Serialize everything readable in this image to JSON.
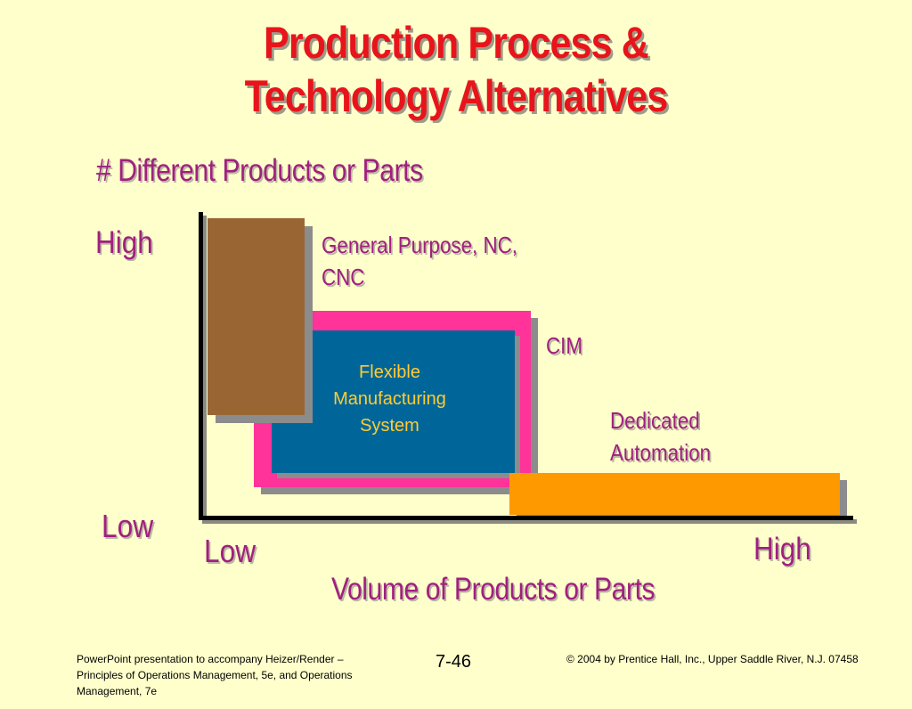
{
  "slide": {
    "title_line1": "Production Process &",
    "title_line2": "Technology Alternatives"
  },
  "diagram": {
    "y_axis_title": "# Different Products or Parts",
    "y_high": "High",
    "y_low": "Low",
    "x_low": "Low",
    "x_high": "High",
    "x_axis_title": "Volume of Products or Parts",
    "labels": {
      "general_purpose_line1": "General Purpose, NC,",
      "general_purpose_line2": "CNC",
      "cim": "CIM",
      "fms": "Flexible\nManufacturing\nSystem",
      "dedicated_line1": "Dedicated",
      "dedicated_line2": "Automation"
    },
    "colors": {
      "general_purpose": "#996633",
      "cim": "#FF3399",
      "fms": "#006699",
      "dedicated": "#FF9900",
      "title": "#E8141B",
      "text": "#A0207F",
      "background": "#FFFFCC"
    }
  },
  "footer": {
    "left": "PowerPoint presentation to accompany Heizer/Render –\nPrinciples of Operations Management, 5e, and Operations\nManagement, 7e",
    "page": "7-46",
    "right": "© 2004 by Prentice Hall, Inc.,  Upper Saddle River, N.J. 07458"
  }
}
